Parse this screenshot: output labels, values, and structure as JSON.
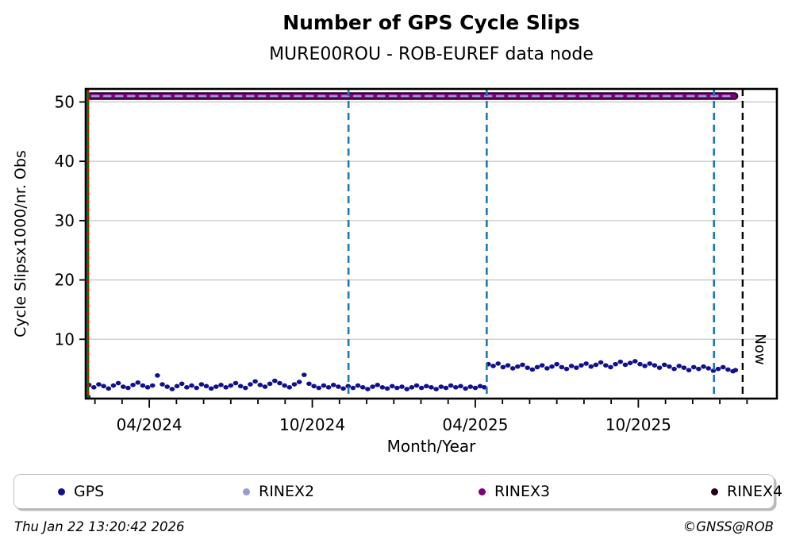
{
  "chart_data": {
    "type": "scatter",
    "title": "Number of GPS Cycle Slips",
    "subtitle": "MURE00ROU - ROB-EUREF data node",
    "xlabel": "Month/Year",
    "ylabel": "Cycle Slipsx1000/nr. Obs",
    "xlim": [
      2024.055,
      2026.175
    ],
    "ylim": [
      0,
      52.2
    ],
    "grid": "horizontal",
    "legend_position": "bottom",
    "yticks": [
      10,
      20,
      30,
      40,
      50
    ],
    "xticks": [
      {
        "x": 2024.25,
        "label": "04/2024"
      },
      {
        "x": 2024.75,
        "label": "10/2024"
      },
      {
        "x": 2025.25,
        "label": "04/2025"
      },
      {
        "x": 2025.75,
        "label": "10/2025"
      }
    ],
    "minor_xticks": "monthly",
    "hlines": [
      {
        "name": "RINEX4",
        "y": 51,
        "x_start": 2024.07,
        "x_end": 2026.045,
        "color": "#200020",
        "width": 9.5,
        "dash": null
      },
      {
        "name": "RINEX3",
        "y": 51,
        "x_start": 2024.07,
        "x_end": 2026.045,
        "color": "#800080",
        "width": 6,
        "dash": null
      },
      {
        "name": "RINEX2",
        "y": 51,
        "x_start": 2024.075,
        "x_end": 2026.04,
        "color": "#9b9bd3",
        "width": 2.6,
        "dash": "8 7"
      }
    ],
    "vlines": [
      {
        "name": "station-event-green",
        "x": 2024.062,
        "color": "#007a00",
        "width": 3,
        "dash": null
      },
      {
        "name": "station-event-red",
        "x": 2024.062,
        "color": "#cc1111",
        "width": 2.3,
        "dash": "5 5"
      },
      {
        "name": "event-line-1",
        "x": 2024.861,
        "color": "#1f77b4",
        "width": 2.6,
        "dash": "9 6"
      },
      {
        "name": "event-line-2",
        "x": 2025.285,
        "color": "#1f77b4",
        "width": 2.6,
        "dash": "9 6"
      },
      {
        "name": "event-line-3",
        "x": 2025.982,
        "color": "#1f77b4",
        "width": 2.6,
        "dash": "9 6"
      },
      {
        "name": "now-line",
        "x": 2026.07,
        "color": "#000000",
        "width": 2.4,
        "dash": "9 6",
        "label": "Now"
      }
    ],
    "series": [
      {
        "name": "GPS",
        "color": "#10108e",
        "marker": "circle",
        "points": [
          [
            2024.062,
            0.3
          ],
          [
            2024.065,
            2.3
          ],
          [
            2024.08,
            1.9
          ],
          [
            2024.095,
            2.4
          ],
          [
            2024.11,
            2.1
          ],
          [
            2024.125,
            1.7
          ],
          [
            2024.14,
            2.2
          ],
          [
            2024.155,
            2.6
          ],
          [
            2024.17,
            2.0
          ],
          [
            2024.185,
            1.8
          ],
          [
            2024.2,
            2.3
          ],
          [
            2024.215,
            2.7
          ],
          [
            2024.23,
            2.2
          ],
          [
            2024.245,
            1.9
          ],
          [
            2024.26,
            2.2
          ],
          [
            2024.275,
            3.9
          ],
          [
            2024.29,
            2.4
          ],
          [
            2024.305,
            2.0
          ],
          [
            2024.32,
            1.6
          ],
          [
            2024.335,
            2.1
          ],
          [
            2024.35,
            2.5
          ],
          [
            2024.365,
            1.9
          ],
          [
            2024.38,
            2.2
          ],
          [
            2024.395,
            1.8
          ],
          [
            2024.41,
            2.4
          ],
          [
            2024.425,
            2.1
          ],
          [
            2024.44,
            1.7
          ],
          [
            2024.455,
            2.0
          ],
          [
            2024.47,
            2.3
          ],
          [
            2024.485,
            1.9
          ],
          [
            2024.5,
            2.2
          ],
          [
            2024.515,
            2.6
          ],
          [
            2024.53,
            2.1
          ],
          [
            2024.545,
            1.8
          ],
          [
            2024.56,
            2.4
          ],
          [
            2024.575,
            2.9
          ],
          [
            2024.59,
            2.3
          ],
          [
            2024.605,
            2.0
          ],
          [
            2024.62,
            2.5
          ],
          [
            2024.635,
            3.0
          ],
          [
            2024.65,
            2.6
          ],
          [
            2024.665,
            2.2
          ],
          [
            2024.68,
            1.9
          ],
          [
            2024.695,
            2.4
          ],
          [
            2024.71,
            2.8
          ],
          [
            2024.725,
            4.0
          ],
          [
            2024.74,
            2.5
          ],
          [
            2024.755,
            2.1
          ],
          [
            2024.77,
            1.8
          ],
          [
            2024.785,
            2.2
          ],
          [
            2024.8,
            1.9
          ],
          [
            2024.815,
            2.3
          ],
          [
            2024.83,
            2.0
          ],
          [
            2024.845,
            1.7
          ],
          [
            2024.86,
            2.1
          ],
          [
            2024.875,
            1.8
          ],
          [
            2024.89,
            2.2
          ],
          [
            2024.905,
            1.9
          ],
          [
            2024.92,
            1.6
          ],
          [
            2024.935,
            2.0
          ],
          [
            2024.95,
            2.3
          ],
          [
            2024.965,
            1.9
          ],
          [
            2024.98,
            1.7
          ],
          [
            2024.995,
            2.1
          ],
          [
            2025.01,
            1.8
          ],
          [
            2025.025,
            2.0
          ],
          [
            2025.04,
            1.6
          ],
          [
            2025.055,
            1.9
          ],
          [
            2025.07,
            2.2
          ],
          [
            2025.085,
            1.8
          ],
          [
            2025.1,
            2.1
          ],
          [
            2025.115,
            1.9
          ],
          [
            2025.13,
            1.6
          ],
          [
            2025.145,
            2.0
          ],
          [
            2025.16,
            1.8
          ],
          [
            2025.175,
            2.2
          ],
          [
            2025.19,
            1.9
          ],
          [
            2025.205,
            2.1
          ],
          [
            2025.22,
            1.7
          ],
          [
            2025.235,
            2.0
          ],
          [
            2025.25,
            1.8
          ],
          [
            2025.265,
            2.1
          ],
          [
            2025.278,
            1.9
          ],
          [
            2025.29,
            5.8
          ],
          [
            2025.305,
            5.5
          ],
          [
            2025.32,
            5.9
          ],
          [
            2025.335,
            5.3
          ],
          [
            2025.35,
            5.6
          ],
          [
            2025.365,
            5.1
          ],
          [
            2025.38,
            5.4
          ],
          [
            2025.395,
            5.7
          ],
          [
            2025.41,
            5.2
          ],
          [
            2025.425,
            4.9
          ],
          [
            2025.44,
            5.3
          ],
          [
            2025.455,
            5.6
          ],
          [
            2025.47,
            5.1
          ],
          [
            2025.485,
            5.4
          ],
          [
            2025.5,
            5.8
          ],
          [
            2025.515,
            5.3
          ],
          [
            2025.53,
            5.0
          ],
          [
            2025.545,
            5.5
          ],
          [
            2025.56,
            5.2
          ],
          [
            2025.575,
            5.6
          ],
          [
            2025.59,
            5.9
          ],
          [
            2025.605,
            5.4
          ],
          [
            2025.62,
            5.7
          ],
          [
            2025.635,
            6.1
          ],
          [
            2025.65,
            5.6
          ],
          [
            2025.665,
            5.3
          ],
          [
            2025.68,
            5.8
          ],
          [
            2025.695,
            6.2
          ],
          [
            2025.71,
            5.7
          ],
          [
            2025.725,
            6.0
          ],
          [
            2025.74,
            6.3
          ],
          [
            2025.755,
            5.8
          ],
          [
            2025.77,
            5.5
          ],
          [
            2025.785,
            5.9
          ],
          [
            2025.8,
            5.6
          ],
          [
            2025.815,
            5.2
          ],
          [
            2025.83,
            5.7
          ],
          [
            2025.845,
            5.4
          ],
          [
            2025.86,
            5.0
          ],
          [
            2025.875,
            5.5
          ],
          [
            2025.89,
            5.2
          ],
          [
            2025.905,
            4.8
          ],
          [
            2025.92,
            5.3
          ],
          [
            2025.935,
            5.0
          ],
          [
            2025.95,
            5.4
          ],
          [
            2025.965,
            5.1
          ],
          [
            2025.98,
            4.7
          ],
          [
            2025.995,
            5.0
          ],
          [
            2026.01,
            5.3
          ],
          [
            2026.025,
            4.9
          ],
          [
            2026.04,
            4.6
          ],
          [
            2026.048,
            4.8
          ]
        ]
      }
    ]
  },
  "legend": {
    "items": [
      {
        "label": "GPS",
        "color": "#10108e"
      },
      {
        "label": "RINEX2",
        "color": "#9b9bd3"
      },
      {
        "label": "RINEX3",
        "color": "#800080"
      },
      {
        "label": "RINEX4",
        "color": "#200020"
      }
    ]
  },
  "footer": {
    "timestamp": "Thu Jan 22 13:20:42 2026",
    "credit": "©GNSS@ROB"
  },
  "colors": {
    "grid": "#c8c8c8",
    "frame": "#000000",
    "event_blue": "#1f77b4"
  }
}
